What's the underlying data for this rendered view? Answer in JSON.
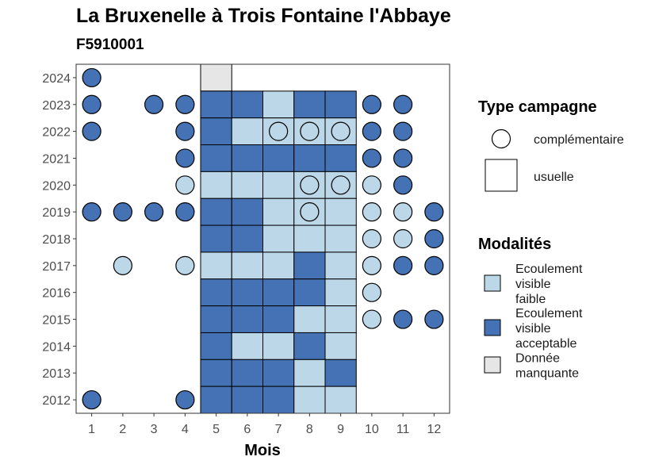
{
  "title": "La Bruxenelle à Trois Fontaine l'Abbaye",
  "subtitle": "F5910001",
  "chart_data": {
    "type": "heatmap",
    "xlabel": "Mois",
    "x": [
      1,
      2,
      3,
      4,
      5,
      6,
      7,
      8,
      9,
      10,
      11,
      12
    ],
    "y": [
      2012,
      2013,
      2014,
      2015,
      2016,
      2017,
      2018,
      2019,
      2020,
      2021,
      2022,
      2023,
      2024
    ],
    "colors": {
      "Ecoulement visible faible": "#bcd7e8",
      "Ecoulement visible acceptable": "#4472b4",
      "Donnée manquante": "#e6e6e6"
    },
    "legend": {
      "type_title": "Type campagne",
      "types": [
        {
          "key": "complementaire",
          "label": "complémentaire"
        },
        {
          "key": "usuelle",
          "label": "usuelle"
        }
      ],
      "modalites_title": "Modalités",
      "modalites": [
        {
          "key": "Ecoulement visible faible",
          "lines": [
            "Ecoulement",
            "visible",
            "faible"
          ]
        },
        {
          "key": "Ecoulement visible acceptable",
          "lines": [
            "Ecoulement",
            "visible",
            "acceptable"
          ]
        },
        {
          "key": "Donnée manquante",
          "lines": [
            "Donnée",
            "manquante"
          ]
        }
      ]
    },
    "points": [
      {
        "year": 2024,
        "month": 1,
        "type": "complementaire",
        "modalite": "Ecoulement visible acceptable"
      },
      {
        "year": 2024,
        "month": 5,
        "type": "usuelle",
        "modalite": "Donnée manquante"
      },
      {
        "year": 2023,
        "month": 1,
        "type": "complementaire",
        "modalite": "Ecoulement visible acceptable"
      },
      {
        "year": 2023,
        "month": 3,
        "type": "complementaire",
        "modalite": "Ecoulement visible acceptable"
      },
      {
        "year": 2023,
        "month": 4,
        "type": "complementaire",
        "modalite": "Ecoulement visible acceptable"
      },
      {
        "year": 2023,
        "month": 5,
        "type": "usuelle",
        "modalite": "Ecoulement visible acceptable"
      },
      {
        "year": 2023,
        "month": 6,
        "type": "usuelle",
        "modalite": "Ecoulement visible acceptable"
      },
      {
        "year": 2023,
        "month": 7,
        "type": "usuelle",
        "modalite": "Ecoulement visible faible"
      },
      {
        "year": 2023,
        "month": 8,
        "type": "usuelle",
        "modalite": "Ecoulement visible acceptable"
      },
      {
        "year": 2023,
        "month": 9,
        "type": "usuelle",
        "modalite": "Ecoulement visible acceptable"
      },
      {
        "year": 2023,
        "month": 10,
        "type": "complementaire",
        "modalite": "Ecoulement visible acceptable"
      },
      {
        "year": 2023,
        "month": 11,
        "type": "complementaire",
        "modalite": "Ecoulement visible acceptable"
      },
      {
        "year": 2022,
        "month": 1,
        "type": "complementaire",
        "modalite": "Ecoulement visible acceptable"
      },
      {
        "year": 2022,
        "month": 4,
        "type": "complementaire",
        "modalite": "Ecoulement visible acceptable"
      },
      {
        "year": 2022,
        "month": 5,
        "type": "usuelle",
        "modalite": "Ecoulement visible acceptable"
      },
      {
        "year": 2022,
        "month": 6,
        "type": "usuelle",
        "modalite": "Ecoulement visible faible"
      },
      {
        "year": 2022,
        "month": 7,
        "type": "usuelle",
        "modalite": "Ecoulement visible faible"
      },
      {
        "year": 2022,
        "month": 7,
        "type": "complementaire",
        "modalite": "Ecoulement visible faible"
      },
      {
        "year": 2022,
        "month": 8,
        "type": "usuelle",
        "modalite": "Ecoulement visible faible"
      },
      {
        "year": 2022,
        "month": 8,
        "type": "complementaire",
        "modalite": "Ecoulement visible faible"
      },
      {
        "year": 2022,
        "month": 9,
        "type": "usuelle",
        "modalite": "Ecoulement visible faible"
      },
      {
        "year": 2022,
        "month": 9,
        "type": "complementaire",
        "modalite": "Ecoulement visible faible"
      },
      {
        "year": 2022,
        "month": 10,
        "type": "complementaire",
        "modalite": "Ecoulement visible acceptable"
      },
      {
        "year": 2022,
        "month": 11,
        "type": "complementaire",
        "modalite": "Ecoulement visible acceptable"
      },
      {
        "year": 2021,
        "month": 4,
        "type": "complementaire",
        "modalite": "Ecoulement visible acceptable"
      },
      {
        "year": 2021,
        "month": 5,
        "type": "usuelle",
        "modalite": "Ecoulement visible acceptable"
      },
      {
        "year": 2021,
        "month": 6,
        "type": "usuelle",
        "modalite": "Ecoulement visible acceptable"
      },
      {
        "year": 2021,
        "month": 7,
        "type": "usuelle",
        "modalite": "Ecoulement visible acceptable"
      },
      {
        "year": 2021,
        "month": 8,
        "type": "usuelle",
        "modalite": "Ecoulement visible acceptable"
      },
      {
        "year": 2021,
        "month": 9,
        "type": "usuelle",
        "modalite": "Ecoulement visible acceptable"
      },
      {
        "year": 2021,
        "month": 10,
        "type": "complementaire",
        "modalite": "Ecoulement visible acceptable"
      },
      {
        "year": 2021,
        "month": 11,
        "type": "complementaire",
        "modalite": "Ecoulement visible acceptable"
      },
      {
        "year": 2020,
        "month": 4,
        "type": "complementaire",
        "modalite": "Ecoulement visible faible"
      },
      {
        "year": 2020,
        "month": 5,
        "type": "usuelle",
        "modalite": "Ecoulement visible faible"
      },
      {
        "year": 2020,
        "month": 6,
        "type": "usuelle",
        "modalite": "Ecoulement visible faible"
      },
      {
        "year": 2020,
        "month": 7,
        "type": "usuelle",
        "modalite": "Ecoulement visible faible"
      },
      {
        "year": 2020,
        "month": 8,
        "type": "usuelle",
        "modalite": "Ecoulement visible faible"
      },
      {
        "year": 2020,
        "month": 8,
        "type": "complementaire",
        "modalite": "Ecoulement visible faible"
      },
      {
        "year": 2020,
        "month": 9,
        "type": "usuelle",
        "modalite": "Ecoulement visible faible"
      },
      {
        "year": 2020,
        "month": 9,
        "type": "complementaire",
        "modalite": "Ecoulement visible faible"
      },
      {
        "year": 2020,
        "month": 10,
        "type": "complementaire",
        "modalite": "Ecoulement visible faible"
      },
      {
        "year": 2020,
        "month": 11,
        "type": "complementaire",
        "modalite": "Ecoulement visible acceptable"
      },
      {
        "year": 2019,
        "month": 1,
        "type": "complementaire",
        "modalite": "Ecoulement visible acceptable"
      },
      {
        "year": 2019,
        "month": 2,
        "type": "complementaire",
        "modalite": "Ecoulement visible acceptable"
      },
      {
        "year": 2019,
        "month": 3,
        "type": "complementaire",
        "modalite": "Ecoulement visible acceptable"
      },
      {
        "year": 2019,
        "month": 4,
        "type": "complementaire",
        "modalite": "Ecoulement visible acceptable"
      },
      {
        "year": 2019,
        "month": 5,
        "type": "usuelle",
        "modalite": "Ecoulement visible acceptable"
      },
      {
        "year": 2019,
        "month": 6,
        "type": "usuelle",
        "modalite": "Ecoulement visible acceptable"
      },
      {
        "year": 2019,
        "month": 7,
        "type": "usuelle",
        "modalite": "Ecoulement visible faible"
      },
      {
        "year": 2019,
        "month": 8,
        "type": "usuelle",
        "modalite": "Ecoulement visible faible"
      },
      {
        "year": 2019,
        "month": 8,
        "type": "complementaire",
        "modalite": "Ecoulement visible faible"
      },
      {
        "year": 2019,
        "month": 9,
        "type": "usuelle",
        "modalite": "Ecoulement visible faible"
      },
      {
        "year": 2019,
        "month": 10,
        "type": "complementaire",
        "modalite": "Ecoulement visible faible"
      },
      {
        "year": 2019,
        "month": 11,
        "type": "complementaire",
        "modalite": "Ecoulement visible faible"
      },
      {
        "year": 2019,
        "month": 12,
        "type": "complementaire",
        "modalite": "Ecoulement visible acceptable"
      },
      {
        "year": 2018,
        "month": 5,
        "type": "usuelle",
        "modalite": "Ecoulement visible acceptable"
      },
      {
        "year": 2018,
        "month": 6,
        "type": "usuelle",
        "modalite": "Ecoulement visible acceptable"
      },
      {
        "year": 2018,
        "month": 7,
        "type": "usuelle",
        "modalite": "Ecoulement visible faible"
      },
      {
        "year": 2018,
        "month": 8,
        "type": "usuelle",
        "modalite": "Ecoulement visible faible"
      },
      {
        "year": 2018,
        "month": 9,
        "type": "usuelle",
        "modalite": "Ecoulement visible faible"
      },
      {
        "year": 2018,
        "month": 10,
        "type": "complementaire",
        "modalite": "Ecoulement visible faible"
      },
      {
        "year": 2018,
        "month": 11,
        "type": "complementaire",
        "modalite": "Ecoulement visible faible"
      },
      {
        "year": 2018,
        "month": 12,
        "type": "complementaire",
        "modalite": "Ecoulement visible acceptable"
      },
      {
        "year": 2017,
        "month": 2,
        "type": "complementaire",
        "modalite": "Ecoulement visible faible"
      },
      {
        "year": 2017,
        "month": 4,
        "type": "complementaire",
        "modalite": "Ecoulement visible faible"
      },
      {
        "year": 2017,
        "month": 5,
        "type": "usuelle",
        "modalite": "Ecoulement visible faible"
      },
      {
        "year": 2017,
        "month": 6,
        "type": "usuelle",
        "modalite": "Ecoulement visible faible"
      },
      {
        "year": 2017,
        "month": 7,
        "type": "usuelle",
        "modalite": "Ecoulement visible faible"
      },
      {
        "year": 2017,
        "month": 8,
        "type": "usuelle",
        "modalite": "Ecoulement visible acceptable"
      },
      {
        "year": 2017,
        "month": 9,
        "type": "usuelle",
        "modalite": "Ecoulement visible faible"
      },
      {
        "year": 2017,
        "month": 10,
        "type": "complementaire",
        "modalite": "Ecoulement visible faible"
      },
      {
        "year": 2017,
        "month": 11,
        "type": "complementaire",
        "modalite": "Ecoulement visible acceptable"
      },
      {
        "year": 2017,
        "month": 12,
        "type": "complementaire",
        "modalite": "Ecoulement visible acceptable"
      },
      {
        "year": 2016,
        "month": 5,
        "type": "usuelle",
        "modalite": "Ecoulement visible acceptable"
      },
      {
        "year": 2016,
        "month": 6,
        "type": "usuelle",
        "modalite": "Ecoulement visible acceptable"
      },
      {
        "year": 2016,
        "month": 7,
        "type": "usuelle",
        "modalite": "Ecoulement visible acceptable"
      },
      {
        "year": 2016,
        "month": 8,
        "type": "usuelle",
        "modalite": "Ecoulement visible acceptable"
      },
      {
        "year": 2016,
        "month": 9,
        "type": "usuelle",
        "modalite": "Ecoulement visible faible"
      },
      {
        "year": 2016,
        "month": 10,
        "type": "complementaire",
        "modalite": "Ecoulement visible faible"
      },
      {
        "year": 2015,
        "month": 5,
        "type": "usuelle",
        "modalite": "Ecoulement visible acceptable"
      },
      {
        "year": 2015,
        "month": 6,
        "type": "usuelle",
        "modalite": "Ecoulement visible acceptable"
      },
      {
        "year": 2015,
        "month": 7,
        "type": "usuelle",
        "modalite": "Ecoulement visible acceptable"
      },
      {
        "year": 2015,
        "month": 8,
        "type": "usuelle",
        "modalite": "Ecoulement visible faible"
      },
      {
        "year": 2015,
        "month": 9,
        "type": "usuelle",
        "modalite": "Ecoulement visible faible"
      },
      {
        "year": 2015,
        "month": 10,
        "type": "complementaire",
        "modalite": "Ecoulement visible faible"
      },
      {
        "year": 2015,
        "month": 11,
        "type": "complementaire",
        "modalite": "Ecoulement visible acceptable"
      },
      {
        "year": 2015,
        "month": 12,
        "type": "complementaire",
        "modalite": "Ecoulement visible acceptable"
      },
      {
        "year": 2014,
        "month": 5,
        "type": "usuelle",
        "modalite": "Ecoulement visible acceptable"
      },
      {
        "year": 2014,
        "month": 6,
        "type": "usuelle",
        "modalite": "Ecoulement visible faible"
      },
      {
        "year": 2014,
        "month": 7,
        "type": "usuelle",
        "modalite": "Ecoulement visible faible"
      },
      {
        "year": 2014,
        "month": 8,
        "type": "usuelle",
        "modalite": "Ecoulement visible acceptable"
      },
      {
        "year": 2014,
        "month": 9,
        "type": "usuelle",
        "modalite": "Ecoulement visible faible"
      },
      {
        "year": 2013,
        "month": 5,
        "type": "usuelle",
        "modalite": "Ecoulement visible acceptable"
      },
      {
        "year": 2013,
        "month": 6,
        "type": "usuelle",
        "modalite": "Ecoulement visible acceptable"
      },
      {
        "year": 2013,
        "month": 7,
        "type": "usuelle",
        "modalite": "Ecoulement visible acceptable"
      },
      {
        "year": 2013,
        "month": 8,
        "type": "usuelle",
        "modalite": "Ecoulement visible faible"
      },
      {
        "year": 2013,
        "month": 9,
        "type": "usuelle",
        "modalite": "Ecoulement visible acceptable"
      },
      {
        "year": 2012,
        "month": 1,
        "type": "complementaire",
        "modalite": "Ecoulement visible acceptable"
      },
      {
        "year": 2012,
        "month": 4,
        "type": "complementaire",
        "modalite": "Ecoulement visible acceptable"
      },
      {
        "year": 2012,
        "month": 5,
        "type": "usuelle",
        "modalite": "Ecoulement visible acceptable"
      },
      {
        "year": 2012,
        "month": 6,
        "type": "usuelle",
        "modalite": "Ecoulement visible acceptable"
      },
      {
        "year": 2012,
        "month": 7,
        "type": "usuelle",
        "modalite": "Ecoulement visible acceptable"
      },
      {
        "year": 2012,
        "month": 8,
        "type": "usuelle",
        "modalite": "Ecoulement visible faible"
      },
      {
        "year": 2012,
        "month": 9,
        "type": "usuelle",
        "modalite": "Ecoulement visible faible"
      }
    ]
  }
}
